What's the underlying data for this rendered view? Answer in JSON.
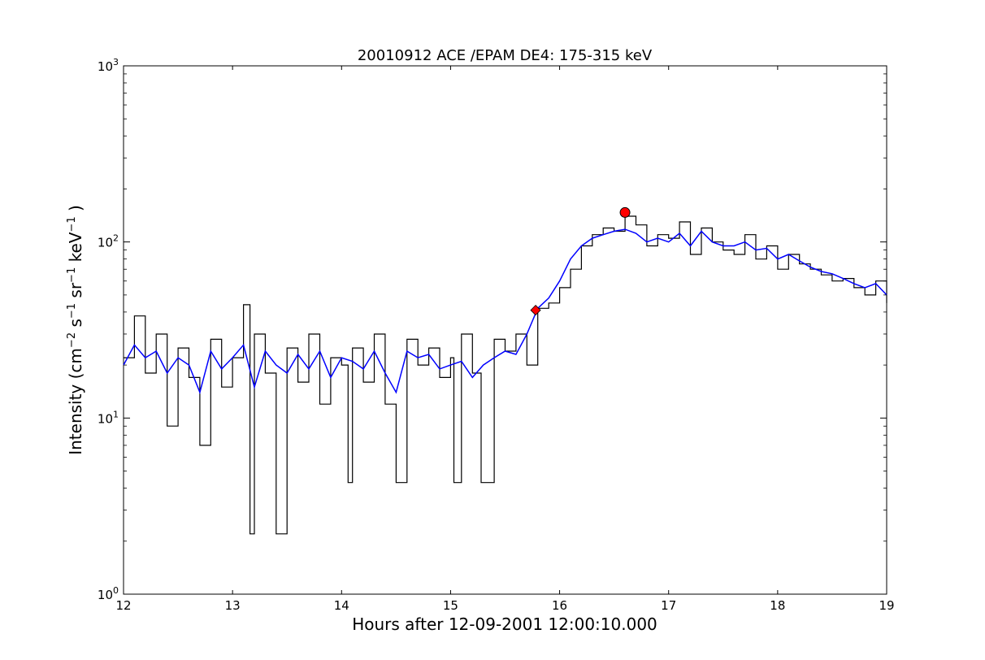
{
  "chart_data": {
    "type": "line",
    "title": "20010912 ACE /EPAM DE4: 175-315 keV",
    "xlabel": "Hours after 12-09-2001 12:00:10.000",
    "ylabel": {
      "parts": [
        "Intensity (cm",
        "−2",
        " s",
        "−1",
        " sr",
        "−1",
        " keV",
        "−1",
        " )"
      ]
    },
    "xlim": [
      12,
      19
    ],
    "ylim": [
      1,
      1000
    ],
    "yscale": "log",
    "grid": false,
    "x_ticks": [
      {
        "value": 12,
        "label": "12"
      },
      {
        "value": 13,
        "label": "13"
      },
      {
        "value": 14,
        "label": "14"
      },
      {
        "value": 15,
        "label": "15"
      },
      {
        "value": 16,
        "label": "16"
      },
      {
        "value": 17,
        "label": "17"
      },
      {
        "value": 18,
        "label": "18"
      },
      {
        "value": 19,
        "label": "19"
      }
    ],
    "y_ticks": [
      {
        "value": 1,
        "base": "10",
        "exp": "0"
      },
      {
        "value": 10,
        "base": "10",
        "exp": "1"
      },
      {
        "value": 100,
        "base": "10",
        "exp": "2"
      },
      {
        "value": 1000,
        "base": "10",
        "exp": "3"
      }
    ],
    "series": [
      {
        "color": "#000000",
        "style": "step",
        "x": [
          12.0,
          12.1,
          12.2,
          12.3,
          12.4,
          12.5,
          12.6,
          12.7,
          12.8,
          12.9,
          13.0,
          13.1,
          13.16,
          13.2,
          13.3,
          13.4,
          13.5,
          13.6,
          13.7,
          13.8,
          13.9,
          14.0,
          14.06,
          14.1,
          14.2,
          14.3,
          14.4,
          14.5,
          14.6,
          14.7,
          14.8,
          14.9,
          15.0,
          15.03,
          15.1,
          15.2,
          15.28,
          15.4,
          15.5,
          15.6,
          15.7,
          15.8,
          15.9,
          16.0,
          16.1,
          16.2,
          16.3,
          16.4,
          16.5,
          16.6,
          16.7,
          16.8,
          16.9,
          17.0,
          17.1,
          17.2,
          17.3,
          17.4,
          17.5,
          17.6,
          17.7,
          17.8,
          17.9,
          18.0,
          18.1,
          18.2,
          18.3,
          18.4,
          18.5,
          18.6,
          18.7,
          18.8,
          18.9,
          19.0
        ],
        "y": [
          22,
          38,
          18,
          30,
          9,
          25,
          17,
          7,
          28,
          15,
          22,
          44,
          2.2,
          30,
          18,
          2.2,
          25,
          16,
          30,
          12,
          22,
          20,
          4.3,
          25,
          16,
          30,
          12,
          4.3,
          28,
          20,
          25,
          17,
          22,
          4.3,
          30,
          18,
          4.3,
          28,
          24,
          30,
          20,
          42,
          45,
          55,
          70,
          95,
          110,
          120,
          115,
          140,
          125,
          95,
          110,
          105,
          130,
          85,
          120,
          100,
          90,
          85,
          110,
          80,
          95,
          70,
          85,
          75,
          70,
          65,
          60,
          62,
          55,
          50,
          60,
          45
        ]
      },
      {
        "color": "#0000ff",
        "style": "line",
        "x": [
          12.0,
          12.1,
          12.2,
          12.3,
          12.4,
          12.5,
          12.6,
          12.7,
          12.8,
          12.9,
          13.0,
          13.1,
          13.2,
          13.3,
          13.4,
          13.5,
          13.6,
          13.7,
          13.8,
          13.9,
          14.0,
          14.1,
          14.2,
          14.3,
          14.4,
          14.5,
          14.6,
          14.7,
          14.8,
          14.9,
          15.0,
          15.1,
          15.2,
          15.3,
          15.4,
          15.5,
          15.6,
          15.7,
          15.8,
          15.9,
          16.0,
          16.1,
          16.2,
          16.3,
          16.4,
          16.5,
          16.6,
          16.7,
          16.8,
          16.9,
          17.0,
          17.1,
          17.2,
          17.3,
          17.4,
          17.5,
          17.6,
          17.7,
          17.8,
          17.9,
          18.0,
          18.1,
          18.2,
          18.3,
          18.4,
          18.5,
          18.6,
          18.7,
          18.8,
          18.9,
          19.0
        ],
        "y": [
          20,
          26,
          22,
          24,
          18,
          22,
          20,
          14,
          24,
          19,
          22,
          26,
          15,
          24,
          20,
          18,
          23,
          19,
          24,
          17,
          22,
          21,
          19,
          24,
          18,
          14,
          24,
          22,
          23,
          19,
          20,
          21,
          17,
          20,
          22,
          24,
          23,
          30,
          42,
          48,
          60,
          80,
          95,
          105,
          110,
          115,
          118,
          112,
          100,
          105,
          100,
          112,
          95,
          115,
          100,
          95,
          95,
          100,
          90,
          92,
          80,
          85,
          78,
          72,
          68,
          66,
          62,
          58,
          55,
          58,
          50
        ]
      }
    ],
    "markers": [
      {
        "x": 15.78,
        "y": 41,
        "shape": "diamond",
        "color": "#ff0000"
      },
      {
        "x": 16.6,
        "y": 147,
        "shape": "circle",
        "color": "#ff0000"
      }
    ]
  }
}
